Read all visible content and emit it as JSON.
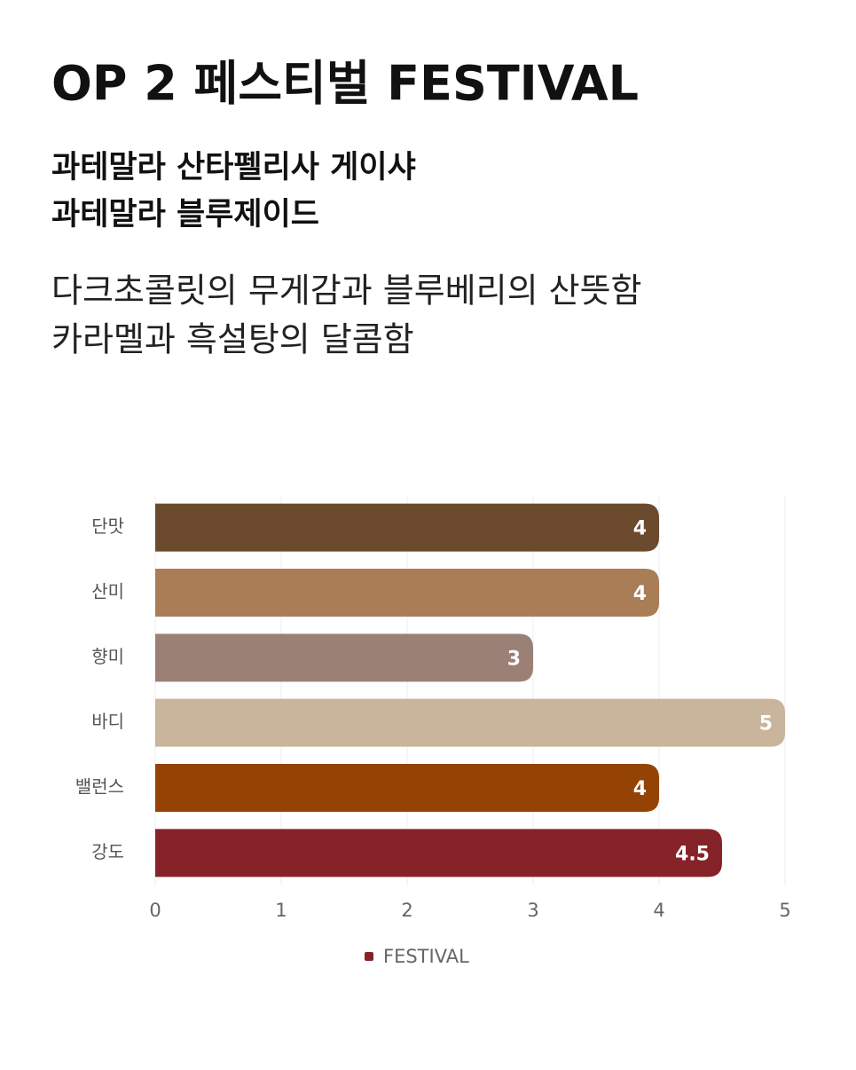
{
  "chart_data": {
    "type": "hbar",
    "title": "OP 2 페스티벌 FESTIVAL",
    "subtitle": [
      "과테말라 산타펠리사 게이샤",
      "과테말라 블루제이드"
    ],
    "description": [
      "다크초콜릿의 무게감과 블루베리의 산뜻함",
      "카라멜과 흑설탕의 달콤함"
    ],
    "categories": [
      "단맛",
      "산미",
      "향미",
      "바디",
      "밸런스",
      "강도"
    ],
    "series": [
      {
        "name": "FESTIVAL",
        "color": "#862328",
        "values": [
          4,
          4,
          3,
          5,
          4,
          4.5
        ]
      }
    ],
    "colors": [
      "#6b4a2e",
      "#a97d56",
      "#9b8075",
      "#c8b59b",
      "#944305",
      "#862328"
    ],
    "xlim": [
      0,
      5
    ],
    "xticks": [
      0,
      1,
      2,
      3,
      4,
      5
    ],
    "grid": true,
    "legend": "bottom"
  }
}
